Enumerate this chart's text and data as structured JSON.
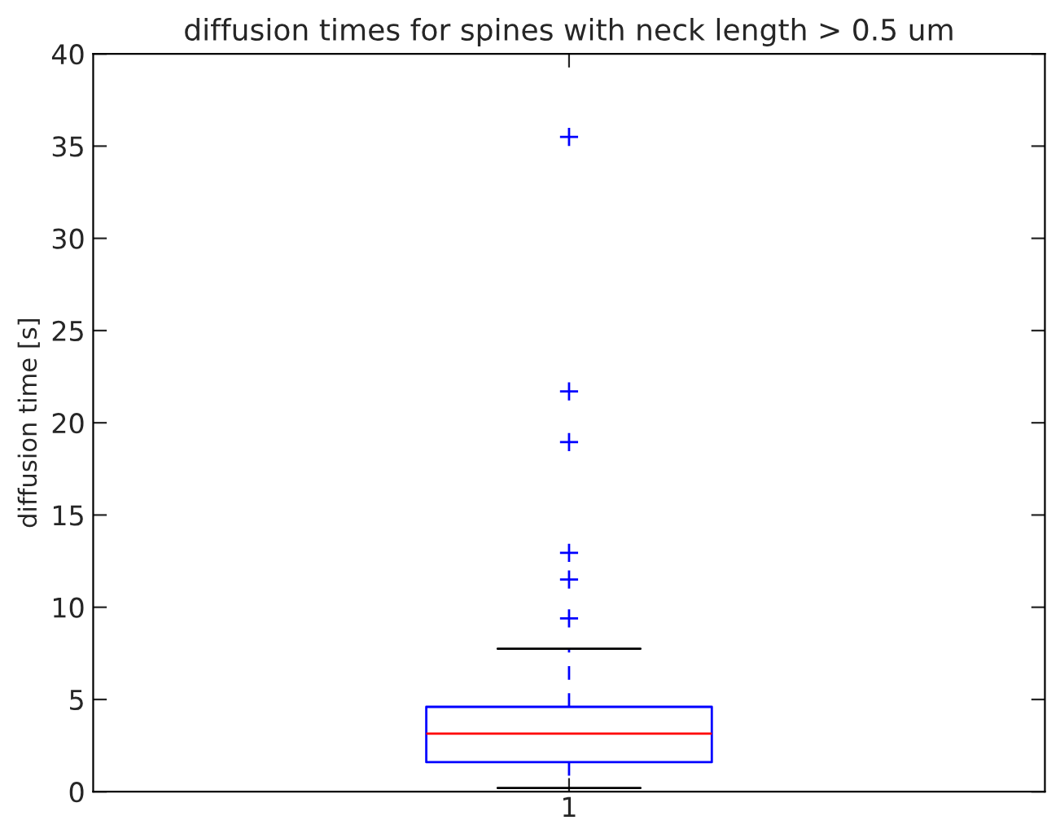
{
  "chart_data": {
    "type": "box",
    "title": "diffusion times for spines with neck length > 0.5 um",
    "ylabel": "diffusion time [s]",
    "categories": [
      "1"
    ],
    "series": [
      {
        "color": "#0000ff",
        "boxes": [
          {
            "low": 0.2,
            "q1": 1.6,
            "median": 3.15,
            "q3": 4.6,
            "high": 7.75,
            "outliers": [
              9.4,
              11.5,
              12.95,
              18.95,
              21.7,
              35.5
            ]
          }
        ]
      }
    ],
    "ylim": [
      0,
      40
    ],
    "yticks": [
      0,
      5,
      10,
      15,
      20,
      25,
      30,
      35,
      40
    ],
    "grid": false,
    "legend": false
  }
}
